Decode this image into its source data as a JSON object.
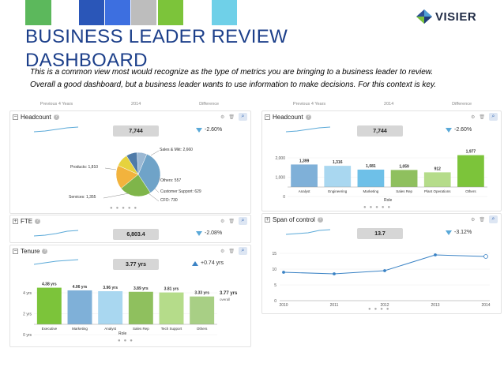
{
  "header": {
    "title_line1": "BUSINESS LEADER REVIEW",
    "title_line2": "DASHBOARD",
    "note_line1": "This is a common view most would recognize as the type of metrics you are bringing to a business leader to review.",
    "note_line2": "Overall a good dashboard, but a business leader wants to use information to make decisions. For this context is key.",
    "logo_text": "VISIER",
    "swatch_colors": [
      "#5cb85c",
      "#2a56b8",
      "#3d6fe0",
      "#bdbdbd",
      "#7cc43a",
      "#6fd0e8"
    ]
  },
  "period_headers": {
    "previous": "Previous 4 Years",
    "year": "2014",
    "difference": "Difference"
  },
  "left": {
    "headcount": {
      "title": "Headcount",
      "value": "7,744",
      "delta": "-2.60%",
      "pie_labels": {
        "sales": "Sales & Mkt: 2,660",
        "products": "Products: 1,810",
        "others": "Others: 557",
        "services": "Services: 1,355",
        "support": "Customer Support: 629",
        "cfo": "CFO: 730"
      },
      "chart_data": {
        "type": "pie",
        "categories": [
          "Sales & Mkt",
          "Products",
          "Services",
          "CFO",
          "Customer Support",
          "Others"
        ],
        "values": [
          2660,
          1810,
          1355,
          730,
          629,
          557
        ],
        "colors": [
          "#6fa3c8",
          "#7fb54a",
          "#f2b33d",
          "#e6d23e",
          "#4f7ba8",
          "#9bb8d3"
        ]
      }
    },
    "fte": {
      "title": "FTE",
      "value": "6,803.4",
      "delta": "-2.08%"
    },
    "tenure": {
      "title": "Tenure",
      "value": "3.77 yrs",
      "delta": "+0.74 yrs",
      "overall_value": "3.77 yrs",
      "overall_label": "overall",
      "x_axis_label": "Role",
      "y_ticks": [
        "4 yrs",
        "2 yrs",
        "0 yrs"
      ],
      "chart_data": {
        "type": "bar",
        "categories": [
          "Executive",
          "Marketing",
          "Analyst",
          "Sales Rep",
          "Tech Support",
          "Others"
        ],
        "values": [
          4.38,
          4.06,
          3.96,
          3.89,
          3.81,
          3.33
        ],
        "labels": [
          "4.38 yrs",
          "4.06 yrs",
          "3.96 yrs",
          "3.89 yrs",
          "3.81 yrs",
          "3.33 yrs"
        ],
        "ylim": [
          0,
          5
        ],
        "colors": [
          "#7cc43a",
          "#7fb0d8",
          "#a9d7f0",
          "#8fc05e",
          "#b5dc8a",
          "#a8cf85"
        ]
      }
    }
  },
  "right": {
    "headcount": {
      "title": "Headcount",
      "value": "7,744",
      "delta": "-2.60%",
      "x_axis_label": "Role",
      "y_ticks": [
        "2,000",
        "1,000",
        "0"
      ],
      "chart_data": {
        "type": "bar",
        "categories": [
          "Analyst",
          "Engineering",
          "Marketing",
          "Sales Rep",
          "Plant Operations",
          "Others"
        ],
        "values": [
          1399,
          1316,
          1081,
          1059,
          912,
          1977
        ],
        "labels": [
          "1,399",
          "1,316",
          "1,081",
          "1,059",
          "912",
          "1,977"
        ],
        "ylim": [
          0,
          2400
        ],
        "colors": [
          "#7fb0d8",
          "#a9d7f0",
          "#6ec0e8",
          "#8fc05e",
          "#b5dc8a",
          "#7cc43a"
        ]
      }
    },
    "span": {
      "title": "Span of control",
      "value": "13.7",
      "delta": "-3.12%",
      "y_ticks": [
        "15",
        "10",
        "5",
        "0"
      ],
      "chart_data": {
        "type": "line",
        "x": [
          "2010",
          "2011",
          "2012",
          "2013",
          "2014"
        ],
        "values": [
          9,
          8.5,
          9.5,
          14.5,
          14
        ],
        "ylim": [
          0,
          17
        ],
        "color": "#3b83c5"
      }
    }
  }
}
